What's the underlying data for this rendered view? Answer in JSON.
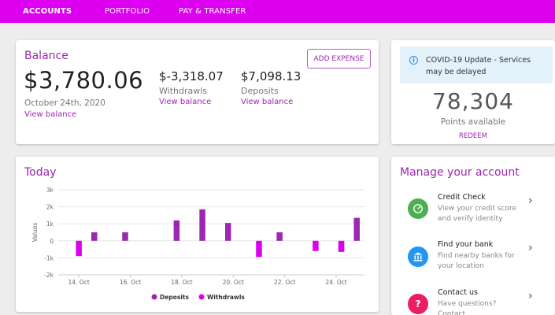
{
  "nav": {
    "items": [
      {
        "label": "ACCOUNTS"
      },
      {
        "label": "PORTFOLIO"
      },
      {
        "label": "PAY & TRANSFER"
      }
    ]
  },
  "balance": {
    "title": "Balance",
    "amount": "$3,780.06",
    "date": "October 24th, 2020",
    "view_link": "View balance",
    "withdrawls": {
      "amount": "$-3,318.07",
      "label": "Withdrawls",
      "link": "View balance"
    },
    "deposits": {
      "amount": "$7,098.13",
      "label": "Deposits",
      "link": "View balance"
    },
    "add_expense": "ADD EXPENSE"
  },
  "points": {
    "notice": "COVID-19 Update - Services may be delayed",
    "value": "78,304",
    "label": "Points available",
    "redeem": "REDEEM"
  },
  "today": {
    "title": "Today"
  },
  "chart_data": {
    "type": "bar",
    "ylabel": "Values",
    "ylim": [
      -2000,
      3000
    ],
    "yticks": [
      3000,
      2000,
      1000,
      0,
      -1000,
      -2000
    ],
    "ytick_labels": [
      "3k",
      "2k",
      "1k",
      "0",
      "-1k",
      "-2k"
    ],
    "x_labels": [
      "14. Oct",
      "16. Oct",
      "18. Oct",
      "20. Oct",
      "22. Oct",
      "24. Oct"
    ],
    "x_label_positions": [
      14,
      16,
      18,
      20,
      22,
      24
    ],
    "xlim": [
      13.2,
      25.1
    ],
    "legend_position": "bottom-center",
    "grid": true,
    "series": [
      {
        "name": "Deposits",
        "color": "#9c27b0",
        "points": [
          {
            "x": 14.6,
            "y": 500
          },
          {
            "x": 15.8,
            "y": 500
          },
          {
            "x": 17.8,
            "y": 1200
          },
          {
            "x": 18.8,
            "y": 1850
          },
          {
            "x": 19.8,
            "y": 1050
          },
          {
            "x": 21.8,
            "y": 500
          },
          {
            "x": 24.8,
            "y": 1350
          }
        ]
      },
      {
        "name": "Withdrawls",
        "color": "#dd00f0",
        "points": [
          {
            "x": 14.0,
            "y": -900
          },
          {
            "x": 21.0,
            "y": -950
          },
          {
            "x": 23.2,
            "y": -600
          },
          {
            "x": 24.2,
            "y": -650
          }
        ]
      }
    ]
  },
  "manage": {
    "title": "Manage your account",
    "items": [
      {
        "title": "Credit Check",
        "desc": "View your credit score and verify identity",
        "icon": "speedometer-icon",
        "color": "#4caf50"
      },
      {
        "title": "Find your bank",
        "desc": "Find nearby banks for your location",
        "icon": "bank-icon",
        "color": "#2196f3"
      },
      {
        "title": "Contact us",
        "desc": "Have questions? Contact",
        "icon": "question-icon",
        "color": "#e91e63"
      }
    ]
  }
}
